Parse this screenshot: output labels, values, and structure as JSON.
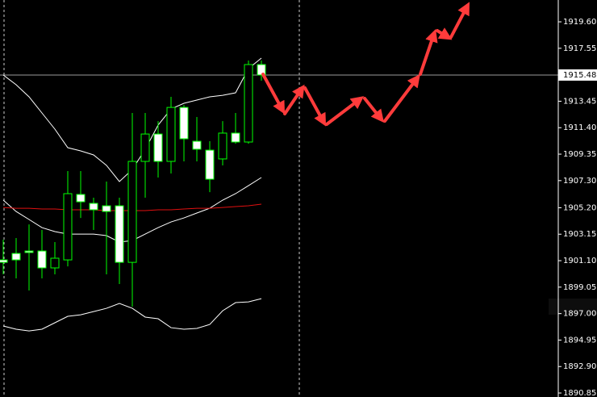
{
  "chart_data": {
    "type": "candlestick",
    "open": [
      1901.16,
      1901.66,
      1901.85,
      1901.85,
      1900.54,
      1901.16,
      1906.23,
      1905.54,
      1905.35,
      1905.35,
      1900.97,
      1908.79,
      1910.91,
      1908.79,
      1912.97,
      1910.35,
      1909.66,
      1908.98,
      1910.98,
      1910.29,
      1916.29
    ],
    "high": [
      1902.73,
      1902.85,
      1903.91,
      1903.48,
      1902.54,
      1908.04,
      1908.04,
      1905.98,
      1907.23,
      1905.98,
      1912.54,
      1912.54,
      1911.91,
      1913.79,
      1913.16,
      1912.23,
      1910.35,
      1911.91,
      1912.54,
      1916.6,
      1916.6
    ],
    "low": [
      1900.04,
      1899.73,
      1898.79,
      1899.73,
      1900.04,
      1900.66,
      1904.41,
      1903.48,
      1900.04,
      1899.29,
      1897.54,
      1905.98,
      1907.54,
      1907.85,
      1908.79,
      1908.79,
      1906.41,
      1908.48,
      1910.16,
      1910.16,
      1915.04
    ],
    "close": [
      1900.97,
      1901.16,
      1901.73,
      1900.54,
      1901.29,
      1906.29,
      1905.66,
      1905.04,
      1904.91,
      1900.97,
      1908.79,
      1910.91,
      1908.79,
      1912.97,
      1910.54,
      1909.73,
      1907.41,
      1910.98,
      1910.29,
      1916.29,
      1915.48
    ],
    "candle_outline": "#00ff00",
    "up_fill": "#000000",
    "down_fill": "#ffffff",
    "lines": [
      {
        "color": "#ffffff",
        "values": [
          1915.48,
          1914.73,
          1913.79,
          1912.54,
          1911.29,
          1909.85,
          1909.6,
          1909.29,
          1908.48,
          1907.23,
          1908.16,
          1909.73,
          1911.6,
          1912.85,
          1913.29,
          1913.54,
          1913.79,
          1913.91,
          1914.1,
          1915.98,
          1916.79
        ]
      },
      {
        "color": "#ffffff",
        "values": [
          1905.79,
          1904.91,
          1904.29,
          1903.66,
          1903.35,
          1903.16,
          1903.16,
          1903.16,
          1903.04,
          1902.54,
          1902.66,
          1903.16,
          1903.66,
          1904.1,
          1904.41,
          1904.79,
          1905.16,
          1905.79,
          1906.29,
          1906.91,
          1907.54
        ]
      },
      {
        "color": "#ffffff",
        "values": [
          1896.04,
          1895.79,
          1895.66,
          1895.79,
          1896.29,
          1896.79,
          1896.91,
          1897.16,
          1897.41,
          1897.79,
          1897.41,
          1896.73,
          1896.6,
          1895.91,
          1895.79,
          1895.85,
          1896.16,
          1897.22,
          1897.85,
          1897.91,
          1898.16
        ]
      },
      {
        "color": "#e01010",
        "values": [
          1905.22,
          1905.16,
          1905.16,
          1905.1,
          1905.1,
          1905.04,
          1905.04,
          1905.04,
          1904.98,
          1904.98,
          1904.98,
          1904.98,
          1905.04,
          1905.04,
          1905.1,
          1905.16,
          1905.16,
          1905.22,
          1905.29,
          1905.35,
          1905.48
        ]
      }
    ],
    "current_price": 1915.48,
    "ylim": [
      1890.54,
      1921.29
    ],
    "yticks": [
      {
        "value": 1919.6,
        "label": "1919.60"
      },
      {
        "value": 1917.55,
        "label": "1917.55"
      },
      {
        "value": 1913.45,
        "label": "1913.45"
      },
      {
        "value": 1911.4,
        "label": "1911.40"
      },
      {
        "value": 1909.35,
        "label": "1909.35"
      },
      {
        "value": 1907.3,
        "label": "1907.30"
      },
      {
        "value": 1905.2,
        "label": "1905.20"
      },
      {
        "value": 1903.15,
        "label": "1903.15"
      },
      {
        "value": 1901.1,
        "label": "1901.10"
      },
      {
        "value": 1899.05,
        "label": "1899.05"
      },
      {
        "value": 1897.0,
        "label": "1897.00"
      },
      {
        "value": 1894.95,
        "label": "1894.95"
      },
      {
        "value": 1892.9,
        "label": "1892.90"
      },
      {
        "value": 1890.85,
        "label": "1890.85"
      }
    ]
  }
}
